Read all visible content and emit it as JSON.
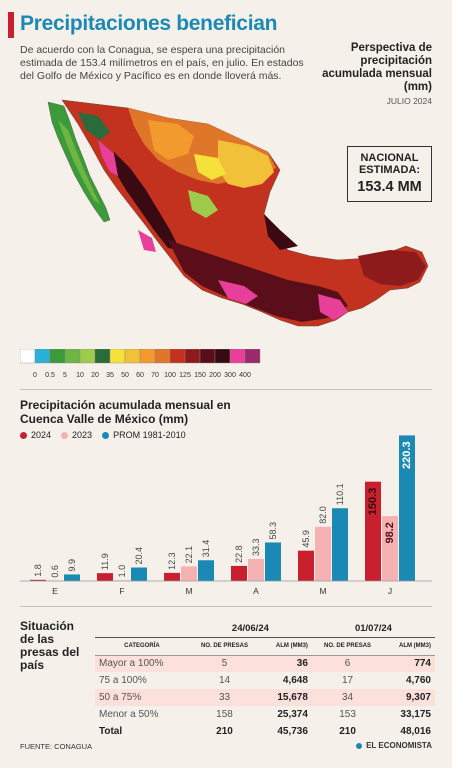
{
  "header": {
    "title": "Precipitaciones benefician",
    "subtitle": "De acuerdo con la Conagua, se espera una precipitación estimada de 153.4 milímetros en el país, en julio. En estados del Golfo de México y Pacífico es en donde lloverá más.",
    "perspective_title": "Perspectiva de precipitación acumulada mensual (mm)",
    "perspective_date": "JULIO 2024",
    "national_label": "NACIONAL ESTIMADA:",
    "national_value": "153.4 MM"
  },
  "map_legend": {
    "ticks": [
      "0",
      "0.5",
      "5",
      "10",
      "20",
      "35",
      "50",
      "60",
      "70",
      "100",
      "125",
      "150",
      "200",
      "300",
      "400"
    ],
    "colors": [
      "#ffffff",
      "#2bb0d8",
      "#3b9a3a",
      "#6fb543",
      "#9fcb4c",
      "#2a6b3a",
      "#f5e13a",
      "#f2c13a",
      "#f29a2e",
      "#e0762a",
      "#c2321f",
      "#8e1b1b",
      "#5a0e1a",
      "#3a0a12",
      "#e8409a",
      "#9a2a6a"
    ]
  },
  "chart_data": {
    "type": "bar",
    "title": "Precipitación acumulada mensual en Cuenca Valle de México (mm)",
    "categories": [
      "E",
      "F",
      "M",
      "A",
      "M",
      "J"
    ],
    "series": [
      {
        "name": "2024",
        "color": "#c8202f",
        "values": [
          1.8,
          11.9,
          12.3,
          22.8,
          45.9,
          150.3
        ]
      },
      {
        "name": "2023",
        "color": "#f4b2b2",
        "values": [
          0.6,
          1.0,
          22.1,
          33.3,
          82.0,
          98.2
        ]
      },
      {
        "name": "PROM 1981-2010",
        "color": "#1a8ab4",
        "values": [
          9.9,
          20.4,
          31.4,
          58.3,
          110.1,
          220.3
        ]
      }
    ],
    "labels": [
      [
        "1.8",
        "11.9",
        "12.3",
        "22.8",
        "45.9",
        "150.3"
      ],
      [
        "0.6",
        "1.0",
        "22.1",
        "33.3",
        "82.0",
        "98.2"
      ],
      [
        "9.9",
        "20.4",
        "31.4",
        "58.3",
        "110.1",
        "220.3"
      ]
    ],
    "ylim": [
      0,
      230
    ],
    "grid": false
  },
  "table": {
    "title": "Situación de las presas del país",
    "dates": [
      "24/06/24",
      "01/07/24"
    ],
    "headers": {
      "categoria": "CATEGORÍA",
      "presas": "NO. DE PRESAS",
      "alm": "ALM (MM3)"
    },
    "rows": [
      {
        "cat": "Mayor a 100%",
        "p1": "5",
        "a1": "36",
        "p2": "6",
        "a2": "774",
        "shade": true
      },
      {
        "cat": "75 a 100%",
        "p1": "14",
        "a1": "4,648",
        "p2": "17",
        "a2": "4,760",
        "shade": false
      },
      {
        "cat": "50 a 75%",
        "p1": "33",
        "a1": "15,678",
        "p2": "34",
        "a2": "9,307",
        "shade": true
      },
      {
        "cat": "Menor a 50%",
        "p1": "158",
        "a1": "25,374",
        "p2": "153",
        "a2": "33,175",
        "shade": false
      },
      {
        "cat": "Total",
        "p1": "210",
        "a1": "45,736",
        "p2": "210",
        "a2": "48,016",
        "shade": false
      }
    ]
  },
  "footer": {
    "source": "FUENTE: CONAGUA",
    "brand": "EL ECONOMISTA"
  }
}
